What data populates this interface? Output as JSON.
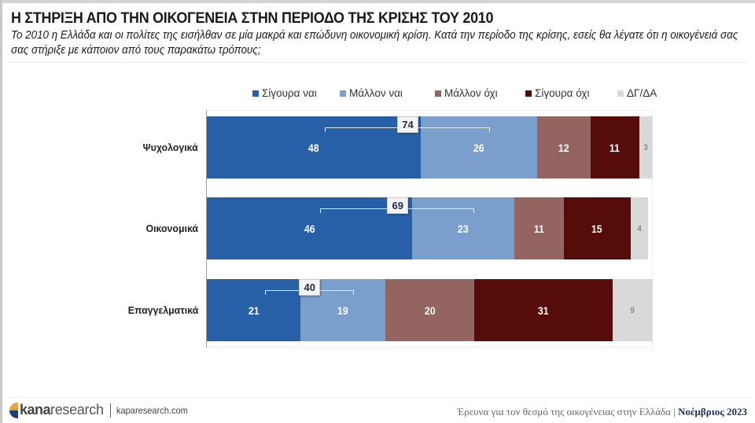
{
  "header": {
    "title": "Η ΣΤΗΡΙΞΗ ΑΠΟ ΤΗΝ ΟΙΚΟΓΕΝΕΙΑ ΣΤΗΝ ΠΕΡΙΟΔΟ ΤΗΣ ΚΡΙΣΗΣ ΤΟΥ 2010",
    "subtitle": "Το 2010 η Ελλάδα και οι πολίτες της εισήλθαν σε μία μακρά και επώδυνη οικονομική κρίση. Κατά την περίοδο της κρίσης, εσείς θα λέγατε ότι η οικογένειά σας σας στήριξε με κάποιον από τους παρακάτω τρόπους;"
  },
  "chart_data": {
    "type": "bar",
    "orientation": "horizontal",
    "stacked": true,
    "title": "Η ΣΤΗΡΙΞΗ ΑΠΟ ΤΗΝ ΟΙΚΟΓΕΝΕΙΑ ΣΤΗΝ ΠΕΡΙΟΔΟ ΤΗΣ ΚΡΙΣΗΣ ΤΟΥ 2010",
    "xlabel": "",
    "ylabel": "",
    "xlim": [
      0,
      100
    ],
    "unit": "%",
    "grid": false,
    "legend_position": "top",
    "categories": [
      "Ψυχολογικά",
      "Οικονομικά",
      "Επαγγελματικά"
    ],
    "series": [
      {
        "name": "Σίγουρα ναι",
        "color": "#2760a6",
        "values": [
          48,
          46,
          21
        ]
      },
      {
        "name": "Μάλλον ναι",
        "color": "#7b9fcc",
        "values": [
          26,
          23,
          19
        ]
      },
      {
        "name": "Μάλλον όχι",
        "color": "#946560",
        "values": [
          12,
          11,
          20
        ]
      },
      {
        "name": "Σίγουρα όχι",
        "color": "#560d0a",
        "values": [
          11,
          15,
          31
        ]
      },
      {
        "name": "ΔΓ/ΔΑ",
        "color": "#d9d9d9",
        "values": [
          3,
          4,
          9
        ]
      }
    ],
    "annotations": {
      "description": "Sum of Σίγουρα ναι + Μάλλον ναι",
      "values": [
        74,
        69,
        40
      ]
    }
  },
  "footer": {
    "brand_bold": "kana",
    "brand_light": "research",
    "url": "kaparesearch.com",
    "survey": "Έρευνα για τον θεσμό της οικογένειας στην Ελλάδα | ",
    "date": "Νοέμβριος 2023"
  }
}
